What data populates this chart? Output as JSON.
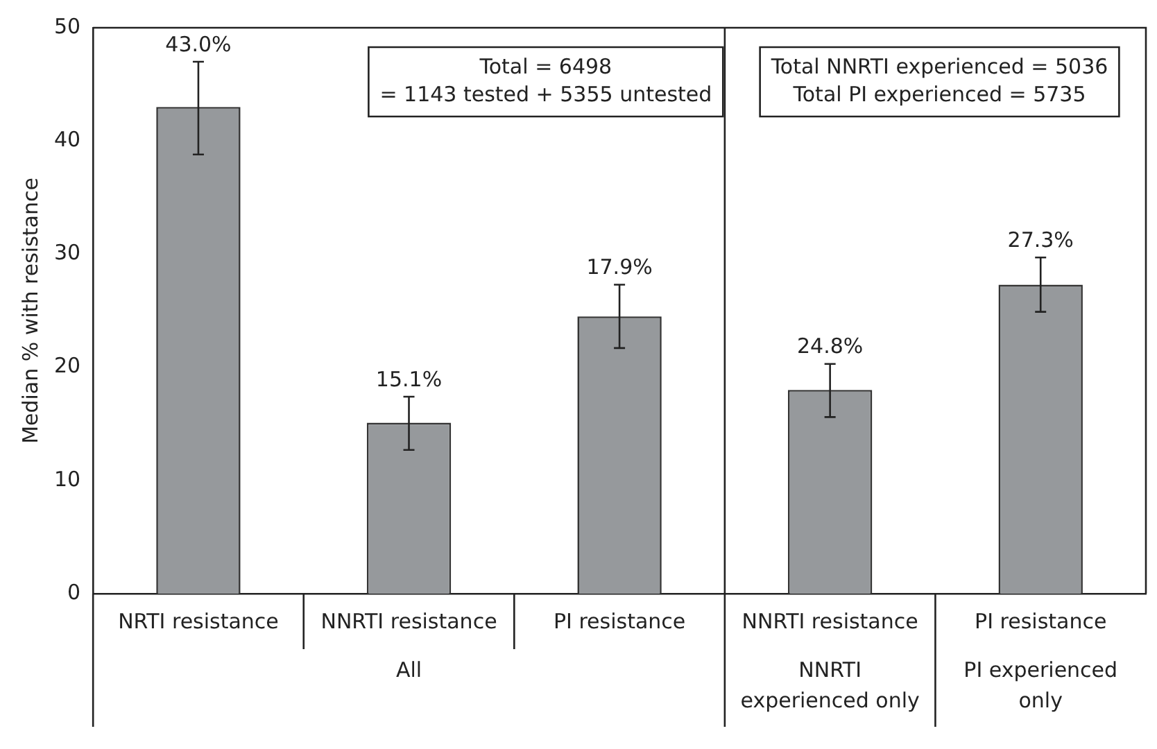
{
  "chart_data": {
    "type": "bar",
    "ylabel": "Median % with resistance",
    "categories": [
      "NRTI resistance",
      "NNRTI resistance",
      "PI resistance",
      "NNRTI resistance",
      "PI resistance"
    ],
    "values": [
      43.0,
      15.1,
      24.5,
      18.0,
      27.3
    ],
    "errors": [
      [
        38.8,
        47.0
      ],
      [
        12.7,
        17.4
      ],
      [
        21.7,
        27.3
      ],
      [
        15.6,
        20.3
      ],
      [
        24.9,
        29.7
      ]
    ],
    "color": "#96999c",
    "ylim": [
      0,
      50
    ],
    "yticks": [
      0,
      10,
      20,
      30,
      40,
      50
    ],
    "grid": false,
    "legend": false,
    "annotations": [
      "Total = 6498\n= 1143 tested + 5355 untested",
      "Total NNRTI experienced = 5036\nTotal PI experienced = 5735",
      "All",
      "NNRTI\nexperienced only",
      "PI experienced\nonly",
      "43.0%",
      "15.1%",
      "17.9%",
      "24.8%",
      "27.3%"
    ]
  }
}
